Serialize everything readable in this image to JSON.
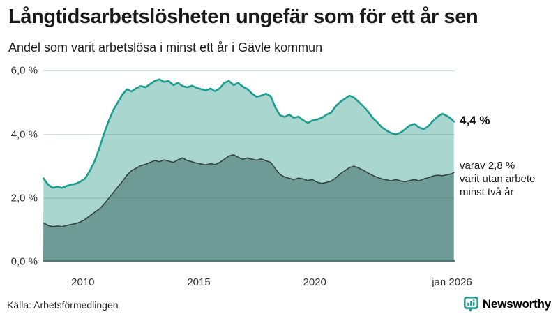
{
  "header": {
    "title": "Långtidsarbetslösheten ungefär som för ett år sen",
    "subtitle": "Andel som varit arbetslösa i minst ett år i Gävle kommun"
  },
  "annotations": {
    "latest_total": "4,4 %",
    "secondary_line1": "varav 2,8 %",
    "secondary_line2": "varit utan arbete",
    "secondary_line3": "minst två år"
  },
  "footer": {
    "source": "Källa: Arbetsförmedlingen",
    "brand": "Newsworthy"
  },
  "colors": {
    "total_line": "#1b9e90",
    "total_fill": "#a9d6cf",
    "two_year_line": "#33423e",
    "two_year_fill": "#6f9b96",
    "gridline": "rgba(70,100,95,0.22)",
    "baseline": "#527672",
    "brand_teal": "#23837b",
    "text_dark": "#1a1a1a"
  },
  "chart_data": {
    "type": "area",
    "title": "Andel som varit arbetslösa i minst ett år i Gävle kommun",
    "xlabel": "",
    "ylabel": "",
    "x_range": [
      2008.29,
      2026.04
    ],
    "y_range": [
      0,
      6.14
    ],
    "grid": true,
    "x_ticks": [
      {
        "label": "2010",
        "value": 2010
      },
      {
        "label": "2015",
        "value": 2015
      },
      {
        "label": "2020",
        "value": 2020
      },
      {
        "label": "jan 2026",
        "value": 2026.0
      }
    ],
    "y_ticks": [
      {
        "label": "0,0 %",
        "value": 0
      },
      {
        "label": "2,0 %",
        "value": 2
      },
      {
        "label": "4,0 %",
        "value": 4
      },
      {
        "label": "6,0 %",
        "value": 6
      }
    ],
    "grid_values": [
      2,
      4,
      6
    ],
    "x": [
      2008.3,
      2008.5,
      2008.7,
      2008.9,
      2009.1,
      2009.3,
      2009.5,
      2009.7,
      2009.9,
      2010.1,
      2010.3,
      2010.5,
      2010.7,
      2010.9,
      2011.1,
      2011.3,
      2011.5,
      2011.7,
      2011.9,
      2012.1,
      2012.3,
      2012.5,
      2012.7,
      2012.9,
      2013.1,
      2013.3,
      2013.5,
      2013.7,
      2013.9,
      2014.1,
      2014.3,
      2014.5,
      2014.7,
      2014.9,
      2015.1,
      2015.3,
      2015.5,
      2015.7,
      2015.9,
      2016.1,
      2016.3,
      2016.5,
      2016.7,
      2016.9,
      2017.1,
      2017.3,
      2017.5,
      2017.7,
      2017.9,
      2018.1,
      2018.3,
      2018.5,
      2018.7,
      2018.9,
      2019.1,
      2019.3,
      2019.5,
      2019.7,
      2019.9,
      2020.1,
      2020.3,
      2020.5,
      2020.7,
      2020.9,
      2021.1,
      2021.3,
      2021.5,
      2021.7,
      2021.9,
      2022.1,
      2022.3,
      2022.5,
      2022.7,
      2022.9,
      2023.1,
      2023.3,
      2023.5,
      2023.7,
      2023.9,
      2024.1,
      2024.3,
      2024.5,
      2024.7,
      2024.9,
      2025.1,
      2025.3,
      2025.5,
      2025.7,
      2025.9,
      2026.0
    ],
    "series": [
      {
        "name": "minst ett år",
        "latest_value": 4.4,
        "values": [
          2.62,
          2.42,
          2.32,
          2.35,
          2.32,
          2.38,
          2.42,
          2.45,
          2.52,
          2.62,
          2.85,
          3.15,
          3.55,
          4.0,
          4.4,
          4.75,
          5.0,
          5.25,
          5.42,
          5.35,
          5.45,
          5.52,
          5.48,
          5.58,
          5.68,
          5.73,
          5.65,
          5.68,
          5.55,
          5.62,
          5.52,
          5.48,
          5.53,
          5.47,
          5.42,
          5.38,
          5.44,
          5.36,
          5.45,
          5.62,
          5.68,
          5.55,
          5.62,
          5.5,
          5.42,
          5.28,
          5.18,
          5.22,
          5.28,
          5.2,
          4.85,
          4.6,
          4.55,
          4.62,
          4.52,
          4.56,
          4.45,
          4.36,
          4.44,
          4.47,
          4.52,
          4.62,
          4.68,
          4.88,
          5.02,
          5.12,
          5.22,
          5.15,
          5.02,
          4.88,
          4.72,
          4.52,
          4.38,
          4.22,
          4.12,
          4.04,
          4.0,
          4.06,
          4.16,
          4.28,
          4.33,
          4.22,
          4.16,
          4.26,
          4.42,
          4.56,
          4.65,
          4.58,
          4.48,
          4.4
        ]
      },
      {
        "name": "minst två år",
        "latest_value": 2.8,
        "values": [
          1.22,
          1.14,
          1.1,
          1.12,
          1.1,
          1.14,
          1.17,
          1.2,
          1.25,
          1.33,
          1.44,
          1.55,
          1.65,
          1.8,
          1.98,
          2.16,
          2.34,
          2.52,
          2.72,
          2.86,
          2.94,
          3.02,
          3.06,
          3.12,
          3.18,
          3.14,
          3.2,
          3.16,
          3.12,
          3.2,
          3.26,
          3.18,
          3.14,
          3.1,
          3.07,
          3.04,
          3.08,
          3.05,
          3.12,
          3.22,
          3.32,
          3.36,
          3.28,
          3.22,
          3.26,
          3.22,
          3.19,
          3.23,
          3.17,
          3.12,
          2.92,
          2.74,
          2.66,
          2.62,
          2.58,
          2.63,
          2.6,
          2.55,
          2.58,
          2.5,
          2.46,
          2.49,
          2.53,
          2.63,
          2.76,
          2.86,
          2.96,
          3.0,
          2.94,
          2.87,
          2.79,
          2.71,
          2.65,
          2.6,
          2.57,
          2.54,
          2.58,
          2.54,
          2.51,
          2.55,
          2.58,
          2.54,
          2.6,
          2.64,
          2.69,
          2.72,
          2.7,
          2.73,
          2.76,
          2.8
        ]
      }
    ]
  }
}
